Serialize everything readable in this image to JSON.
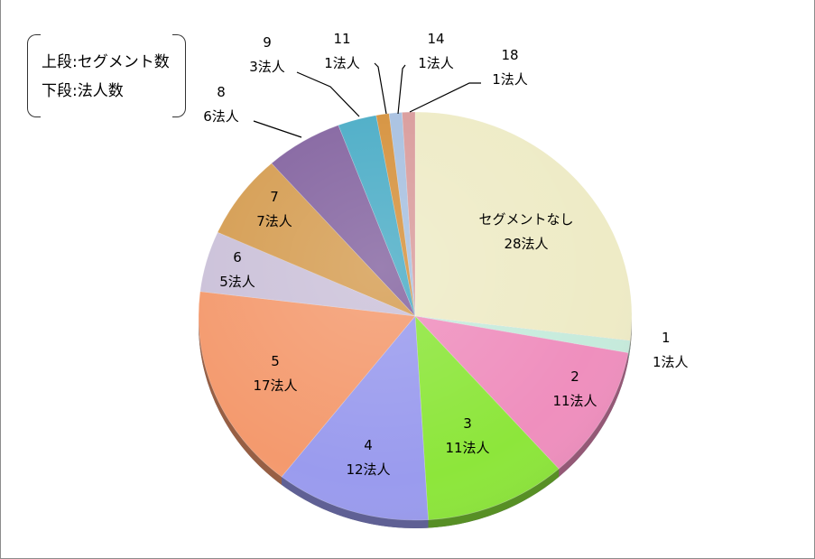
{
  "legend": {
    "line1": "上段:セグメント数",
    "line2": "下段:法人数"
  },
  "chart_data": {
    "type": "pie",
    "title": "",
    "slices": [
      {
        "segments": "セグメントなし",
        "corporations": "28法人",
        "value": 28,
        "color": "#EEEBC6"
      },
      {
        "segments": "1",
        "corporations": "1法人",
        "value": 1,
        "color": "#C6EBDC"
      },
      {
        "segments": "2",
        "corporations": "11法人",
        "value": 11,
        "color": "#EF8FBE"
      },
      {
        "segments": "3",
        "corporations": "11法人",
        "value": 11,
        "color": "#8DE63B"
      },
      {
        "segments": "4",
        "corporations": "12法人",
        "value": 12,
        "color": "#9A9BEE"
      },
      {
        "segments": "5",
        "corporations": "17法人",
        "value": 17,
        "color": "#F49A6E"
      },
      {
        "segments": "6",
        "corporations": "5法人",
        "value": 5,
        "color": "#CBC1D9"
      },
      {
        "segments": "7",
        "corporations": "7法人",
        "value": 7,
        "color": "#D59D52"
      },
      {
        "segments": "8",
        "corporations": "6法人",
        "value": 6,
        "color": "#8464A0"
      },
      {
        "segments": "9",
        "corporations": "3法人",
        "value": 3,
        "color": "#4AACC6"
      },
      {
        "segments": "11",
        "corporations": "1法人",
        "value": 1,
        "color": "#D5913C"
      },
      {
        "segments": "14",
        "corporations": "1法人",
        "value": 1,
        "color": "#A7C0E0"
      },
      {
        "segments": "18",
        "corporations": "1法人",
        "value": 1,
        "color": "#D99B9B"
      }
    ],
    "legend_position": "top-left"
  }
}
